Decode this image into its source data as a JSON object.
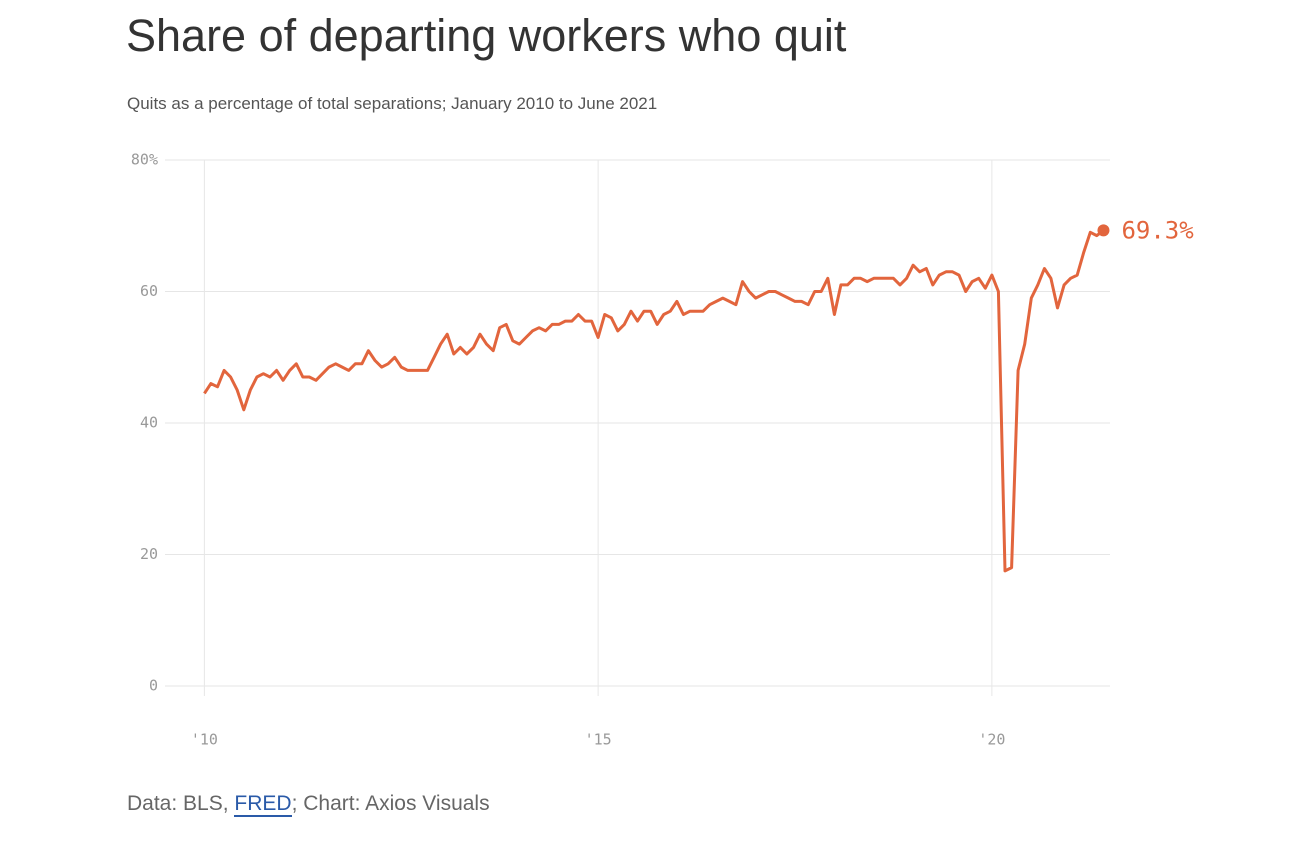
{
  "chart_data": {
    "type": "line",
    "title": "Share of departing workers who quit",
    "subtitle": "Quits as a percentage of total separations; January 2010 to June 2021",
    "source_prefix": "Data: BLS, ",
    "source_link": "FRED",
    "source_suffix": "; Chart: Axios Visuals",
    "last_value_label": "69.3%",
    "color": "#e2653d",
    "grid": true,
    "xlim": [
      2009.5,
      2021.5
    ],
    "xticks": [
      {
        "value": 2010,
        "label": "'10"
      },
      {
        "value": 2015,
        "label": "'15"
      },
      {
        "value": 2020,
        "label": "'20"
      }
    ],
    "ylim": [
      0,
      80
    ],
    "yticks": [
      0,
      20,
      40,
      60,
      {
        "value": 80,
        "label": "80%"
      }
    ],
    "x": [
      2010,
      2010.083,
      2010.167,
      2010.25,
      2010.333,
      2010.417,
      2010.5,
      2010.583,
      2010.667,
      2010.75,
      2010.833,
      2010.917,
      2011,
      2011.083,
      2011.167,
      2011.25,
      2011.333,
      2011.417,
      2011.5,
      2011.583,
      2011.667,
      2011.75,
      2011.833,
      2011.917,
      2012,
      2012.083,
      2012.167,
      2012.25,
      2012.333,
      2012.417,
      2012.5,
      2012.583,
      2012.667,
      2012.75,
      2012.833,
      2012.917,
      2013,
      2013.083,
      2013.167,
      2013.25,
      2013.333,
      2013.417,
      2013.5,
      2013.583,
      2013.667,
      2013.75,
      2013.833,
      2013.917,
      2014,
      2014.083,
      2014.167,
      2014.25,
      2014.333,
      2014.417,
      2014.5,
      2014.583,
      2014.667,
      2014.75,
      2014.833,
      2014.917,
      2015,
      2015.083,
      2015.167,
      2015.25,
      2015.333,
      2015.417,
      2015.5,
      2015.583,
      2015.667,
      2015.75,
      2015.833,
      2015.917,
      2016,
      2016.083,
      2016.167,
      2016.25,
      2016.333,
      2016.417,
      2016.5,
      2016.583,
      2016.667,
      2016.75,
      2016.833,
      2016.917,
      2017,
      2017.083,
      2017.167,
      2017.25,
      2017.333,
      2017.417,
      2017.5,
      2017.583,
      2017.667,
      2017.75,
      2017.833,
      2017.917,
      2018,
      2018.083,
      2018.167,
      2018.25,
      2018.333,
      2018.417,
      2018.5,
      2018.583,
      2018.667,
      2018.75,
      2018.833,
      2018.917,
      2019,
      2019.083,
      2019.167,
      2019.25,
      2019.333,
      2019.417,
      2019.5,
      2019.583,
      2019.667,
      2019.75,
      2019.833,
      2019.917,
      2020,
      2020.083,
      2020.167,
      2020.25,
      2020.333,
      2020.417,
      2020.5,
      2020.583,
      2020.667,
      2020.75,
      2020.833,
      2020.917,
      2021,
      2021.083,
      2021.167,
      2021.25,
      2021.333,
      2021.417
    ],
    "values": [
      44.5,
      46,
      45.5,
      48,
      47,
      45,
      42,
      45,
      47,
      47.5,
      47,
      48,
      46.5,
      48,
      49,
      47,
      47,
      46.5,
      47.5,
      48.5,
      49,
      48.5,
      48,
      49,
      49,
      51,
      49.5,
      48.5,
      49,
      50,
      48.5,
      48,
      48,
      48,
      48,
      50,
      52,
      53.5,
      50.5,
      51.5,
      50.5,
      51.5,
      53.5,
      52,
      51,
      54.5,
      55,
      52.5,
      52,
      53,
      54,
      54.5,
      54,
      55,
      55,
      55.5,
      55.5,
      56.5,
      55.5,
      55.5,
      53,
      56.5,
      56,
      54,
      55,
      57,
      55.5,
      57,
      57,
      55,
      56.5,
      57,
      58.5,
      56.5,
      57,
      57,
      57,
      58,
      58.5,
      59,
      58.5,
      58,
      61.5,
      60,
      59,
      59.5,
      60,
      60,
      59.5,
      59,
      58.5,
      58.5,
      58,
      60,
      60,
      62,
      56.5,
      61,
      61,
      62,
      62,
      61.5,
      62,
      62,
      62,
      62,
      61,
      62,
      64,
      63,
      63.5,
      61,
      62.5,
      63,
      63,
      62.5,
      60,
      61.5,
      62,
      60.5,
      62.5,
      60,
      17.5,
      18,
      48,
      52,
      59,
      61,
      63.5,
      62,
      57.5,
      61,
      62,
      62.5,
      66,
      69,
      68.5,
      69.3
    ]
  }
}
